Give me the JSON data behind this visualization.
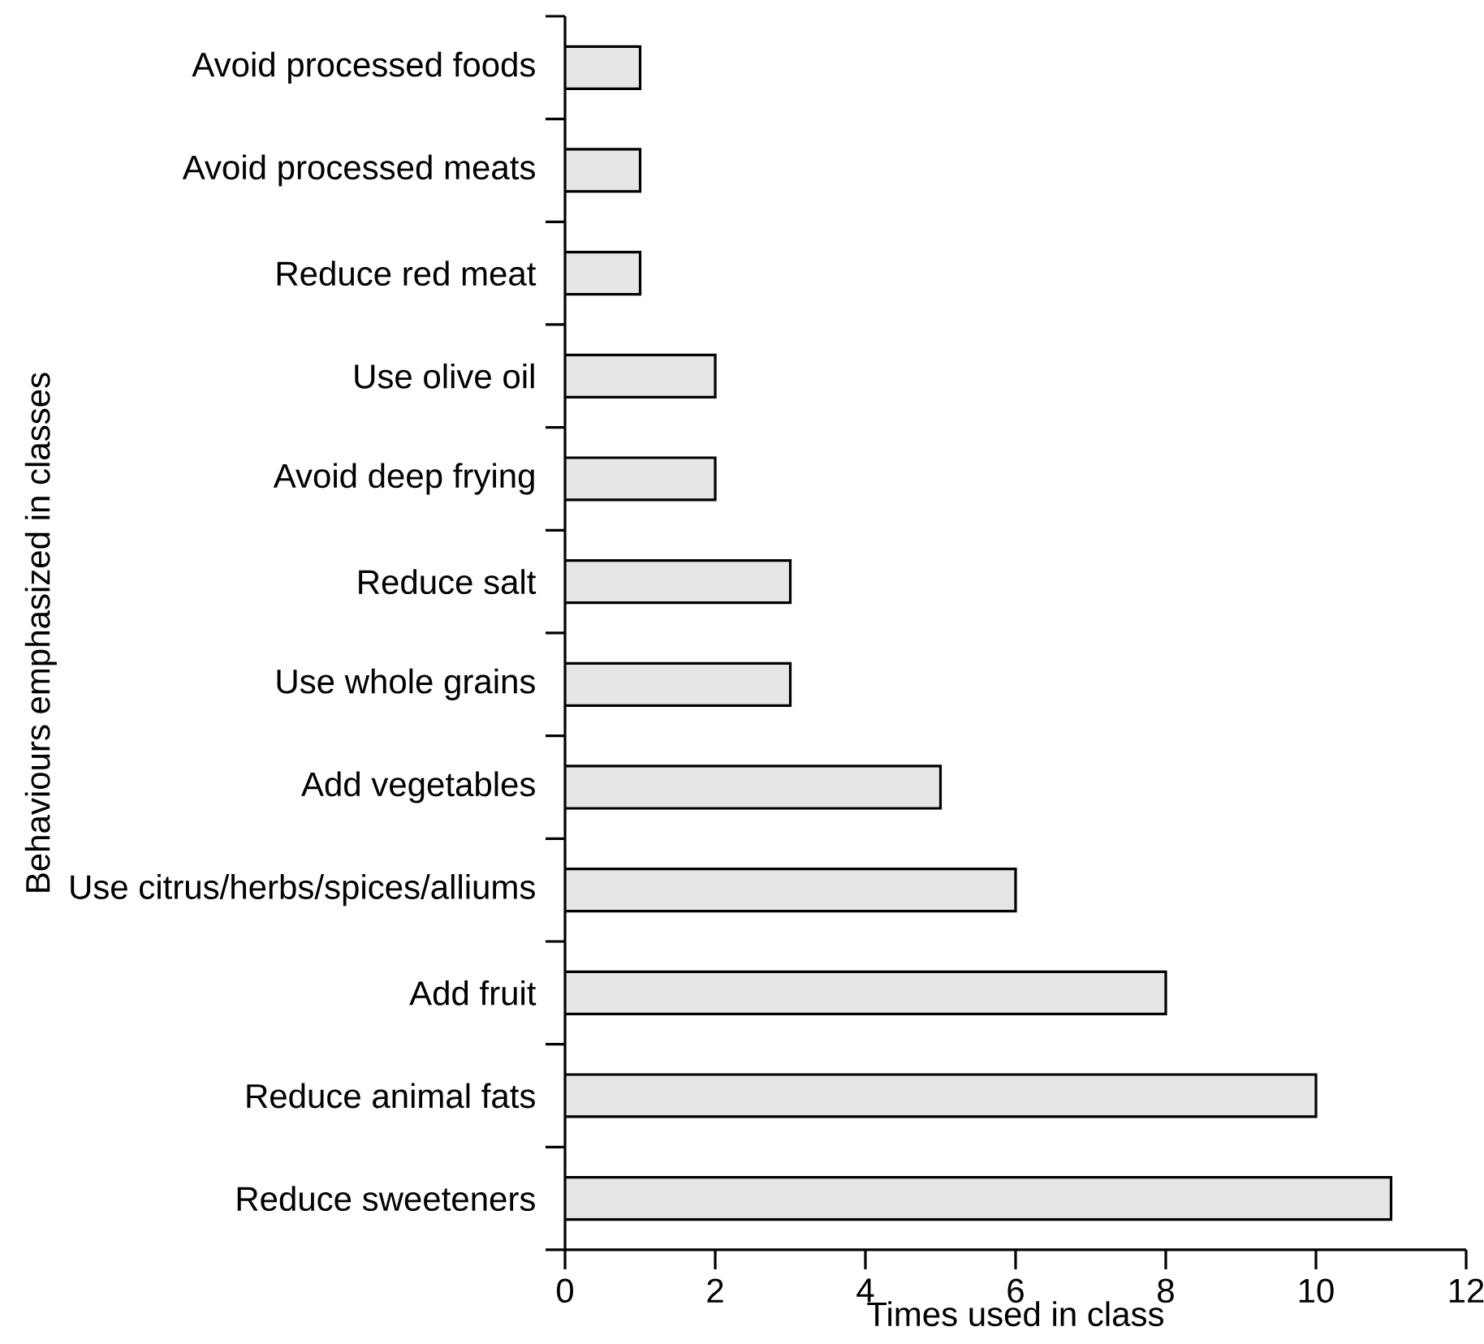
{
  "chart_data": {
    "type": "bar",
    "orientation": "horizontal",
    "categories": [
      "Avoid processed foods",
      "Avoid processed meats",
      "Reduce red meat",
      "Use olive oil",
      "Avoid deep frying",
      "Reduce salt",
      "Use whole grains",
      "Add vegetables",
      "Use citrus/herbs/spices/alliums",
      "Add fruit",
      "Reduce animal fats",
      "Reduce sweeteners"
    ],
    "values": [
      1,
      1,
      1,
      2,
      2,
      3,
      3,
      5,
      6,
      8,
      10,
      11
    ],
    "color": "#e6e6e6",
    "xlim": [
      0,
      12
    ],
    "xticks": [
      0,
      2,
      4,
      6,
      8,
      10,
      12
    ],
    "xlabel": "Times used in class",
    "ylabel": "Behaviours emphasized in classes",
    "grid": false
  }
}
